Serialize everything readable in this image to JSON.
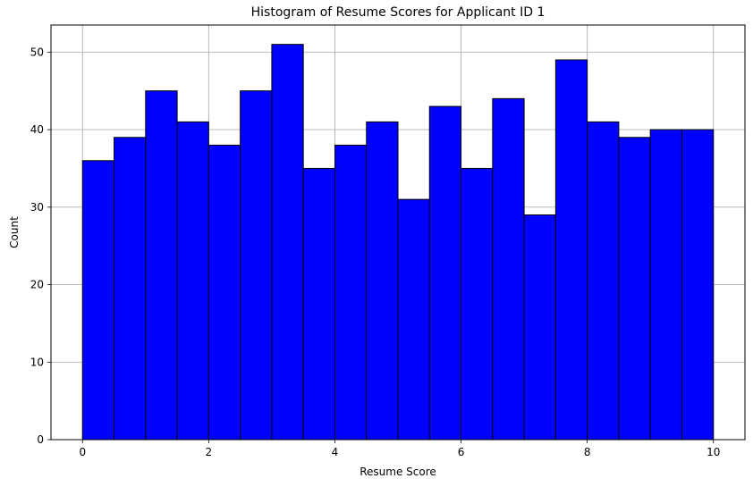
{
  "chart_data": {
    "type": "bar",
    "title": "Histogram of Resume Scores for Applicant ID 1",
    "xlabel": "Resume Score",
    "ylabel": "Count",
    "xlim": [
      -0.5,
      10.5
    ],
    "ylim": [
      0,
      53.5
    ],
    "x_ticks": [
      0,
      2,
      4,
      6,
      8,
      10
    ],
    "y_ticks": [
      0,
      10,
      20,
      30,
      40,
      50
    ],
    "grid": true,
    "bar_color": "#0000ff",
    "edge_color": "#000000",
    "grid_color": "#b0b0b0",
    "bins": [
      {
        "x0": 0.0,
        "x1": 0.5,
        "count": 36
      },
      {
        "x0": 0.5,
        "x1": 1.0,
        "count": 39
      },
      {
        "x0": 1.0,
        "x1": 1.5,
        "count": 45
      },
      {
        "x0": 1.5,
        "x1": 2.0,
        "count": 41
      },
      {
        "x0": 2.0,
        "x1": 2.5,
        "count": 38
      },
      {
        "x0": 2.5,
        "x1": 3.0,
        "count": 45
      },
      {
        "x0": 3.0,
        "x1": 3.5,
        "count": 51
      },
      {
        "x0": 3.5,
        "x1": 4.0,
        "count": 35
      },
      {
        "x0": 4.0,
        "x1": 4.5,
        "count": 38
      },
      {
        "x0": 4.5,
        "x1": 5.0,
        "count": 41
      },
      {
        "x0": 5.0,
        "x1": 5.5,
        "count": 31
      },
      {
        "x0": 5.5,
        "x1": 6.0,
        "count": 43
      },
      {
        "x0": 6.0,
        "x1": 6.5,
        "count": 35
      },
      {
        "x0": 6.5,
        "x1": 7.0,
        "count": 44
      },
      {
        "x0": 7.0,
        "x1": 7.5,
        "count": 29
      },
      {
        "x0": 7.5,
        "x1": 8.0,
        "count": 49
      },
      {
        "x0": 8.0,
        "x1": 8.5,
        "count": 41
      },
      {
        "x0": 8.5,
        "x1": 9.0,
        "count": 39
      },
      {
        "x0": 9.0,
        "x1": 9.5,
        "count": 40
      },
      {
        "x0": 9.5,
        "x1": 10.0,
        "count": 40
      }
    ]
  }
}
